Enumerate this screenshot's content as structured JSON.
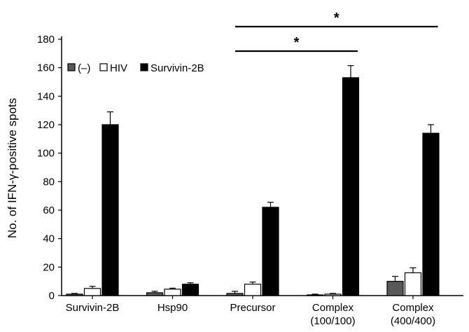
{
  "chart_data": {
    "type": "bar",
    "ylabel": "No. of IFN-γ-positive spots",
    "ylim": [
      0,
      180
    ],
    "yticks": [
      0,
      20,
      40,
      60,
      80,
      100,
      120,
      140,
      160,
      180
    ],
    "categories": [
      [
        "Survivin-2B"
      ],
      [
        "Hsp90"
      ],
      [
        "Precursor"
      ],
      [
        "Complex",
        "(100/100)"
      ],
      [
        "Complex",
        "(400/400)"
      ]
    ],
    "series": [
      {
        "name": "(–)",
        "color": "#595959",
        "values": [
          1,
          2,
          1.5,
          0.5,
          10
        ],
        "errors": [
          0.5,
          1,
          1.5,
          0.5,
          3.5
        ]
      },
      {
        "name": "HIV",
        "color": "#ffffff",
        "values": [
          5,
          4.5,
          8,
          1,
          16
        ],
        "errors": [
          1.5,
          0.7,
          1.5,
          0.5,
          3.5
        ]
      },
      {
        "name": "Survivin-2B",
        "color": "#000000",
        "values": [
          120,
          8,
          62,
          153,
          114
        ],
        "errors": [
          9,
          1,
          3.5,
          8.5,
          6
        ]
      }
    ],
    "legend": {
      "position": "top-left"
    },
    "significance": [
      {
        "from_category": 2,
        "to_category": 3,
        "level": 1,
        "label": "*"
      },
      {
        "from_category": 2,
        "to_category": 4,
        "level": 2,
        "label": "*"
      }
    ]
  }
}
